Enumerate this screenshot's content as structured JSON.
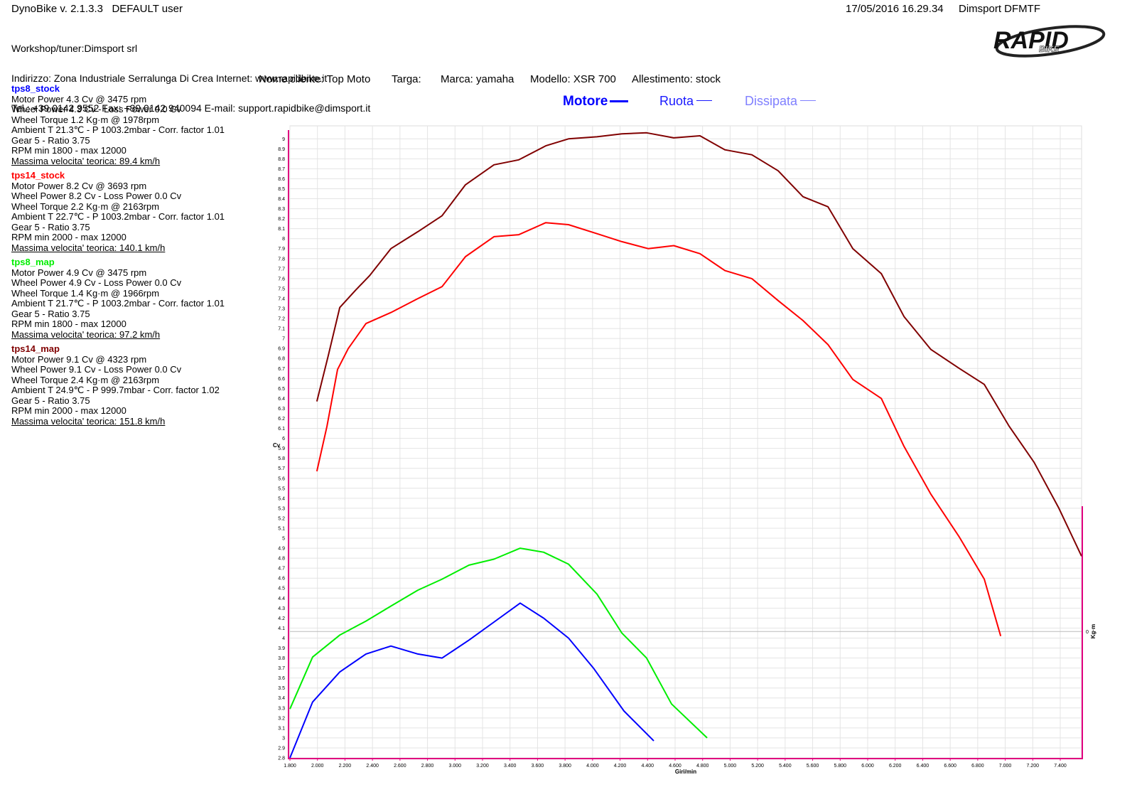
{
  "header": {
    "app": "DynoBike v. 2.1.3.3   DEFAULT user",
    "datetime": "17/05/2016 16.29.34",
    "station": "Dimsport DFMTF",
    "workshop": [
      "Workshop/tuner:Dimsport srl",
      "Indirizzo: Zona Industriale Serralunga Di Crea Internet: www.rapidbike.it",
      "Tel.: +39 0142 9552 Fax: +39 0142 940094 E-mail: support.rapidbike@dimsport.it"
    ],
    "logo": [
      "RAPID",
      "BIKE"
    ]
  },
  "client": [
    "Nome cliente: Top Moto",
    "Targa:",
    "Marca: yamaha",
    "Modello: XSR 700",
    "Allestimento: stock"
  ],
  "modes": [
    {
      "label": "Motore",
      "color": "#0000ff"
    },
    {
      "label": "Ruota",
      "color": "#1a1aff"
    },
    {
      "label": "Dissipata",
      "color": "#8080ff"
    }
  ],
  "chart_data": {
    "type": "line",
    "xlabel": "Giri/min",
    "ylabel": "Cv",
    "y2label": "Kg·m",
    "xlim": [
      1800,
      7555
    ],
    "ylim": [
      2.8,
      9.13
    ],
    "y2lim": [
      -1,
      4
    ],
    "y2ticks": [
      0
    ],
    "grid": true,
    "xticks": [
      {
        "value": 1800,
        "label": "1.800"
      },
      {
        "value": 2000,
        "label": "2.000"
      },
      {
        "value": 2200,
        "label": "2.200"
      },
      {
        "value": 2400,
        "label": "2.400"
      },
      {
        "value": 2600,
        "label": "2.600"
      },
      {
        "value": 2800,
        "label": "2.800"
      },
      {
        "value": 3000,
        "label": "3.000"
      },
      {
        "value": 3200,
        "label": "3.200"
      },
      {
        "value": 3400,
        "label": "3.400"
      },
      {
        "value": 3600,
        "label": "3.600"
      },
      {
        "value": 3800,
        "label": "3.800"
      },
      {
        "value": 4000,
        "label": "4.000"
      },
      {
        "value": 4200,
        "label": "4.200"
      },
      {
        "value": 4400,
        "label": "4.400"
      },
      {
        "value": 4600,
        "label": "4.600"
      },
      {
        "value": 4800,
        "label": "4.800"
      },
      {
        "value": 5000,
        "label": "5.000"
      },
      {
        "value": 5200,
        "label": "5.200"
      },
      {
        "value": 5400,
        "label": "5.400"
      },
      {
        "value": 5600,
        "label": "5.600"
      },
      {
        "value": 5800,
        "label": "5.800"
      },
      {
        "value": 6000,
        "label": "6.000"
      },
      {
        "value": 6200,
        "label": "6.200"
      },
      {
        "value": 6400,
        "label": "6.400"
      },
      {
        "value": 6600,
        "label": "6.600"
      },
      {
        "value": 6800,
        "label": "6.800"
      },
      {
        "value": 7000,
        "label": "7.000"
      },
      {
        "value": 7200,
        "label": "7.200"
      },
      {
        "value": 7400,
        "label": "7.400"
      }
    ],
    "yticks": [
      2.8,
      2.9,
      3,
      3.1,
      3.2,
      3.3,
      3.4,
      3.5,
      3.6,
      3.7,
      3.8,
      3.9,
      4,
      4.1,
      4.2,
      4.3,
      4.4,
      4.5,
      4.6,
      4.7,
      4.8,
      4.9,
      5,
      5.1,
      5.2,
      5.3,
      5.4,
      5.5,
      5.6,
      5.7,
      5.8,
      5.9,
      6,
      6.1,
      6.2,
      6.3,
      6.4,
      6.5,
      6.6,
      6.7,
      6.8,
      6.9,
      7,
      7.1,
      7.2,
      7.3,
      7.4,
      7.5,
      7.6,
      7.7,
      7.8,
      7.9,
      8,
      8.1,
      8.2,
      8.3,
      8.4,
      8.5,
      8.6,
      8.7,
      8.8,
      8.9,
      9
    ],
    "series": [
      {
        "name": "tps8_stock",
        "color": "#0000ff",
        "info": [
          "Motor Power 4.3 Cv  @ 3475 rpm",
          "Wheel Power 4.3 Cv  - Loss Power 0.0 Cv",
          "Wheel Torque 1.2 Kg·m  @ 1978rpm",
          "Ambient T 21.3℃ - P 1003.2mbar - Corr. factor 1.01",
          "Gear 5 - Ratio 3.75",
          "RPM min 1800 - max 12000",
          "Massima velocita' teorica: 89.4 km/h"
        ],
        "x": [
          1800,
          1965,
          2162,
          2353,
          2534,
          2730,
          2906,
          3102,
          3283,
          3474,
          3644,
          3825,
          4006,
          4228,
          4445
        ],
        "values": [
          2.8,
          3.36,
          3.66,
          3.84,
          3.92,
          3.84,
          3.8,
          3.98,
          4.16,
          4.35,
          4.2,
          4.0,
          3.7,
          3.27,
          2.97
        ]
      },
      {
        "name": "tps14_stock",
        "color": "#ff0000",
        "info": [
          "Motor Power 8.2 Cv  @ 3693 rpm",
          "Wheel Power 8.2 Cv  - Loss Power 0.0 Cv",
          "Wheel Torque 2.2 Kg·m  @ 2163rpm",
          "Ambient T 22.7℃ - P 1003.2mbar - Corr. factor 1.01",
          "Gear 5 - Ratio 3.75",
          "RPM min 2000 - max 12000",
          "Massima velocita' teorica: 140.1 km/h"
        ],
        "x": [
          1996,
          2069,
          2146,
          2224,
          2353,
          2534,
          2730,
          2906,
          3076,
          3283,
          3464,
          3660,
          3825,
          4032,
          4213,
          4404,
          4590,
          4781,
          4962,
          5158,
          5349,
          5530,
          5711,
          5892,
          6099,
          6264,
          6460,
          6667,
          6848,
          6967
        ],
        "values": [
          5.67,
          6.12,
          6.69,
          6.9,
          7.15,
          7.26,
          7.4,
          7.52,
          7.82,
          8.02,
          8.04,
          8.16,
          8.14,
          8.05,
          7.97,
          7.9,
          7.93,
          7.85,
          7.68,
          7.6,
          7.38,
          7.18,
          6.94,
          6.59,
          6.4,
          5.92,
          5.44,
          5.01,
          4.59,
          4.02
        ]
      },
      {
        "name": "tps8_map",
        "color": "#00ee00",
        "info": [
          "Motor Power 4.9 Cv  @ 3475 rpm",
          "Wheel Power 4.9 Cv  - Loss Power 0.0 Cv",
          "Wheel Torque 1.4 Kg·m  @ 1966rpm",
          "Ambient T 21.7℃ - P 1003.2mbar - Corr. factor 1.01",
          "Gear 5 - Ratio 3.75",
          "RPM min 1800 - max 12000",
          "Massima velocita' teorica: 97.2 km/h"
        ],
        "x": [
          1800,
          1965,
          2162,
          2353,
          2534,
          2730,
          2906,
          3102,
          3283,
          3474,
          3644,
          3825,
          4032,
          4213,
          4393,
          4574,
          4833
        ],
        "values": [
          3.29,
          3.81,
          4.03,
          4.17,
          4.32,
          4.48,
          4.59,
          4.73,
          4.79,
          4.9,
          4.86,
          4.74,
          4.44,
          4.05,
          3.8,
          3.34,
          3.0
        ]
      },
      {
        "name": "tps14_map",
        "color": "#800000",
        "info": [
          "Motor Power 9.1 Cv  @ 4323 rpm",
          "Wheel Power 9.1 Cv  - Loss Power 0.0 Cv",
          "Wheel Torque 2.4 Kg·m  @ 2163rpm",
          "Ambient T 24.9℃ - P 999.7mbar - Corr. factor 1.02",
          "Gear 5 - Ratio 3.75",
          "RPM min 2000 - max 12000",
          "Massima velocita' teorica: 151.8 km/h"
        ],
        "x": [
          1996,
          2079,
          2162,
          2275,
          2379,
          2534,
          2730,
          2906,
          3076,
          3283,
          3464,
          3660,
          3825,
          4032,
          4213,
          4393,
          4590,
          4781,
          4962,
          5158,
          5349,
          5530,
          5711,
          5892,
          6099,
          6264,
          6460,
          6667,
          6848,
          7029,
          7210,
          7390,
          7555
        ],
        "values": [
          6.37,
          6.83,
          7.31,
          7.48,
          7.63,
          7.9,
          8.07,
          8.23,
          8.54,
          8.74,
          8.79,
          8.93,
          9.0,
          9.02,
          9.05,
          9.06,
          9.01,
          9.03,
          8.89,
          8.84,
          8.68,
          8.42,
          8.32,
          7.9,
          7.65,
          7.22,
          6.89,
          6.7,
          6.54,
          6.12,
          5.76,
          5.3,
          4.82
        ]
      }
    ]
  }
}
